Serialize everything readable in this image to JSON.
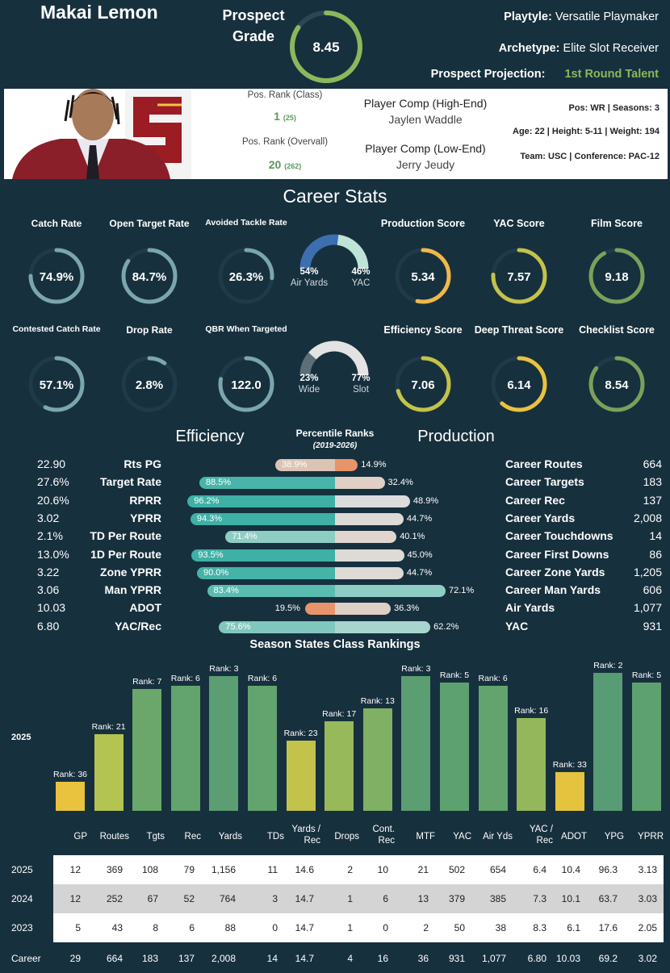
{
  "player": {
    "name": "Makai Lemon",
    "prospect_grade_label": "Prospect Grade",
    "prospect_grade": "8.45",
    "grade_fraction": 0.845,
    "playtyle_label": "Playtyle:",
    "playtyle_value": "Versatile Playmaker",
    "archetype_label": "Archetype:",
    "archetype_value": "Elite Slot Receiver",
    "projection_label": "Prospect Projection:",
    "projection_value": "1st Round Talent"
  },
  "info": {
    "pos_rank_class_label": "Pos. Rank (Class)",
    "pos_rank_class": "1",
    "pos_rank_class_total": "(25)",
    "pos_rank_overall_label": "Pos. Rank (Overvall)",
    "pos_rank_overall": "20",
    "pos_rank_overall_total": "(262)",
    "comp_high_label": "Player Comp (High-End)",
    "comp_high": "Jaylen Waddle",
    "comp_low_label": "Player Comp (Low-End)",
    "comp_low": "Jerry Jeudy",
    "line1": "Pos: WR | Seasons: 3",
    "line2": "Age: 22 | Height: 5-11 | Weight: 194",
    "line3": "Team: USC | Conference: PAC-12"
  },
  "career_stats_title": "Career Stats",
  "gauges": [
    {
      "label": "Catch Rate",
      "value": "74.9%",
      "fraction": 0.749,
      "color": "#7aa6ac"
    },
    {
      "label": "Open Target Rate",
      "value": "84.7%",
      "fraction": 0.847,
      "color": "#7aa6ac"
    },
    {
      "label": "Avoided Tackle Rate",
      "value": "26.3%",
      "fraction": 0.263,
      "color": "#7aa6ac"
    },
    {
      "label": "Production Score",
      "value": "5.34",
      "fraction": 0.534,
      "color": "#f0b84a"
    },
    {
      "label": "YAC Score",
      "value": "7.57",
      "fraction": 0.757,
      "color": "#c3c24a"
    },
    {
      "label": "Film Score",
      "value": "9.18",
      "fraction": 0.918,
      "color": "#7ba05a"
    },
    {
      "label": "Contested Catch Rate",
      "value": "57.1%",
      "fraction": 0.571,
      "color": "#7aa6ac"
    },
    {
      "label": "Drop Rate",
      "value": "2.8%",
      "fraction": 0.1,
      "color": "#7aa6ac"
    },
    {
      "label": "QBR When Targeted",
      "value": "122.0",
      "fraction": 0.78,
      "color": "#7aa6ac"
    },
    {
      "label": "Efficiency Score",
      "value": "7.06",
      "fraction": 0.706,
      "color": "#c3c24a"
    },
    {
      "label": "Deep Threat Score",
      "value": "6.14",
      "fraction": 0.614,
      "color": "#e9c23e"
    },
    {
      "label": "Checklist Score",
      "value": "8.54",
      "fraction": 0.854,
      "color": "#7ba05a"
    }
  ],
  "splits": [
    {
      "left_pct": "54%",
      "right_pct": "46%",
      "left_label": "Air Yards",
      "right_label": "YAC",
      "left_frac": 0.54,
      "left_color": "#3b6fb0",
      "right_color": "#bfe3d6"
    },
    {
      "left_pct": "23%",
      "right_pct": "77%",
      "left_label": "Wide",
      "right_label": "Slot",
      "left_frac": 0.23,
      "left_color": "#5c6f78",
      "right_color": "#e3e3e3"
    }
  ],
  "percentiles": {
    "efficiency_title": "Efficiency",
    "production_title": "Production",
    "header": "Percentile Ranks",
    "subheader": "(2019-2026)",
    "rows": [
      {
        "left_val": "22.90",
        "left_label": "Rts PG",
        "left_pct": 38.9,
        "left_text": "38.9%",
        "left_color": "#dcc4b4",
        "right_pct": 14.9,
        "right_text": "14.9%",
        "right_color": "#e8946a",
        "right_label": "Career Routes",
        "right_val": "664"
      },
      {
        "left_val": "27.6%",
        "left_label": "Target Rate",
        "left_pct": 88.5,
        "left_text": "88.5%",
        "left_color": "#49b5aa",
        "right_pct": 32.4,
        "right_text": "32.4%",
        "right_color": "#e0cfc4",
        "right_label": "Career Targets",
        "right_val": "183"
      },
      {
        "left_val": "20.6%",
        "left_label": "RPRR",
        "left_pct": 96.2,
        "left_text": "96.2%",
        "left_color": "#3eb0a6",
        "right_pct": 48.9,
        "right_text": "48.9%",
        "right_color": "#dcdcdc",
        "right_label": "Career Rec",
        "right_val": "137"
      },
      {
        "left_val": "3.02",
        "left_label": "YPRR",
        "left_pct": 94.3,
        "left_text": "94.3%",
        "left_color": "#3eb0a6",
        "right_pct": 44.7,
        "right_text": "44.7%",
        "right_color": "#dedad6",
        "right_label": "Career Yards",
        "right_val": "2,008"
      },
      {
        "left_val": "2.1%",
        "left_label": "TD Per Route",
        "left_pct": 71.4,
        "left_text": "71.4%",
        "left_color": "#8ecdc4",
        "right_pct": 40.1,
        "right_text": "40.1%",
        "right_color": "#e0d6cf",
        "right_label": "Career Touchdowns",
        "right_val": "14"
      },
      {
        "left_val": "13.0%",
        "left_label": "1D Per Route",
        "left_pct": 93.5,
        "left_text": "93.5%",
        "left_color": "#3eb0a6",
        "right_pct": 45.0,
        "right_text": "45.0%",
        "right_color": "#dedad6",
        "right_label": "Career First Downs",
        "right_val": "86"
      },
      {
        "left_val": "3.22",
        "left_label": "Zone YPRR",
        "left_pct": 90.0,
        "left_text": "90.0%",
        "left_color": "#45b3a8",
        "right_pct": 44.7,
        "right_text": "44.7%",
        "right_color": "#dedad6",
        "right_label": "Career Zone Yards",
        "right_val": "1,205"
      },
      {
        "left_val": "3.06",
        "left_label": "Man YPRR",
        "left_pct": 83.4,
        "left_text": "83.4%",
        "left_color": "#5abcb0",
        "right_pct": 72.1,
        "right_text": "72.1%",
        "right_color": "#8ecdc4",
        "right_label": "Career Man Yards",
        "right_val": "606"
      },
      {
        "left_val": "10.03",
        "left_label": "ADOT",
        "left_pct": 19.5,
        "left_text": "19.5%",
        "left_color": "#e8946a",
        "right_pct": 36.3,
        "right_text": "36.3%",
        "right_color": "#e0cfc4",
        "right_label": "Air Yards",
        "right_val": "1,077"
      },
      {
        "left_val": "6.80",
        "left_label": "YAC/Rec",
        "left_pct": 75.6,
        "left_text": "75.6%",
        "left_color": "#80c8be",
        "right_pct": 62.2,
        "right_text": "62.2%",
        "right_color": "#a8d6cf",
        "right_label": "YAC",
        "right_val": "931"
      }
    ]
  },
  "season": {
    "title": "Season States Class Rankings",
    "year_label": "2025",
    "bars": [
      {
        "rank": 36,
        "label": "Rank: 36",
        "color": "#e9c23e"
      },
      {
        "rank": 21,
        "label": "Rank: 21",
        "color": "#b4c452"
      },
      {
        "rank": 7,
        "label": "Rank: 7",
        "color": "#6ba76a"
      },
      {
        "rank": 6,
        "label": "Rank: 6",
        "color": "#62a36e"
      },
      {
        "rank": 3,
        "label": "Rank: 3",
        "color": "#5a9e72"
      },
      {
        "rank": 6,
        "label": "Rank: 6",
        "color": "#62a36e"
      },
      {
        "rank": 23,
        "label": "Rank: 23",
        "color": "#c3c24a"
      },
      {
        "rank": 17,
        "label": "Rank: 17",
        "color": "#98b95a"
      },
      {
        "rank": 13,
        "label": "Rank: 13",
        "color": "#80b063"
      },
      {
        "rank": 3,
        "label": "Rank: 3",
        "color": "#5a9e72"
      },
      {
        "rank": 5,
        "label": "Rank: 5",
        "color": "#5ea170"
      },
      {
        "rank": 6,
        "label": "Rank: 6",
        "color": "#62a36e"
      },
      {
        "rank": 16,
        "label": "Rank: 16",
        "color": "#94b75c"
      },
      {
        "rank": 33,
        "label": "Rank: 33",
        "color": "#e6c33e"
      },
      {
        "rank": 2,
        "label": "Rank: 2",
        "color": "#579c74"
      },
      {
        "rank": 5,
        "label": "Rank: 5",
        "color": "#5ea170"
      }
    ]
  },
  "table": {
    "headers": [
      "GP",
      "Routes",
      "Tgts",
      "Rec",
      "Yards",
      "TDs",
      "Yards / Rec",
      "Drops",
      "Cont. Rec",
      "MTF",
      "YAC",
      "Air Yds",
      "YAC / Rec",
      "ADOT",
      "YPG",
      "YPRR"
    ],
    "rows": [
      {
        "year": "2025",
        "cells": [
          "12",
          "369",
          "108",
          "79",
          "1,156",
          "11",
          "14.6",
          "2",
          "10",
          "21",
          "502",
          "654",
          "6.4",
          "10.4",
          "96.3",
          "3.13"
        ]
      },
      {
        "year": "2024",
        "cells": [
          "12",
          "252",
          "67",
          "52",
          "764",
          "3",
          "14.7",
          "1",
          "6",
          "13",
          "379",
          "385",
          "7.3",
          "10.1",
          "63.7",
          "3.03"
        ]
      },
      {
        "year": "2023",
        "cells": [
          "5",
          "43",
          "8",
          "6",
          "88",
          "0",
          "14.7",
          "1",
          "0",
          "2",
          "50",
          "38",
          "8.3",
          "6.1",
          "17.6",
          "2.05"
        ]
      },
      {
        "year": "Career",
        "cells": [
          "29",
          "664",
          "183",
          "137",
          "2,008",
          "14",
          "14.7",
          "4",
          "16",
          "36",
          "931",
          "1,077",
          "6.80",
          "10.03",
          "69.2",
          "3.02"
        ]
      }
    ]
  }
}
